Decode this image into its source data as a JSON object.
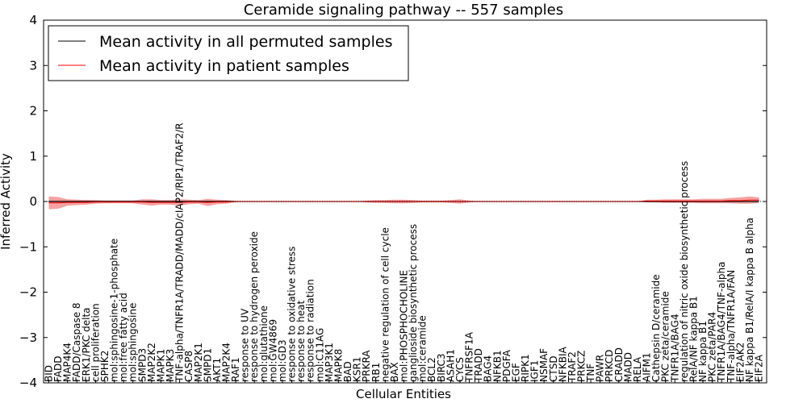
{
  "chart_data": {
    "type": "line",
    "title": "Ceramide signaling pathway -- 557 samples",
    "xlabel": "Cellular Entities",
    "ylabel": "Inferred Activity",
    "ylim": [
      -4,
      4
    ],
    "yticks": [
      -4,
      -3,
      -2,
      -1,
      0,
      1,
      2,
      3,
      4
    ],
    "grid": false,
    "legend": {
      "placement": "top-left",
      "entries": [
        {
          "label": "Mean activity in all permuted samples",
          "color": "#000000"
        },
        {
          "label": "Mean activity in patient samples",
          "color": "#ff0000"
        }
      ]
    },
    "categories": [
      "BID",
      "FADD",
      "MAP4K4",
      "FADD/Caspase 8",
      "ERK1/PKC delta",
      "cell proliferation",
      "SPHK2",
      "mol:sphingosine-1-phosphate",
      "mol:free fatty acid",
      "mol:sphingosine",
      "SMPD3",
      "MAP2K2",
      "MAPK1",
      "MAPK3",
      "TNF-alpha/TNFR1A/TRADD/MADD/cIAP2/RIP1/TRAF2/R",
      "CASP8",
      "MAP2K1",
      "SMPD1",
      "AKT1",
      "MAP2K4",
      "RAF1",
      "response to UV",
      "response to hydrogen peroxide",
      "mol:glutathione",
      "mol:GW4869",
      "mol:GD3",
      "response to oxidative stress",
      "response to heat",
      "response to radiation",
      "mol:C11AG",
      "MAP3K1",
      "MAPK8",
      "BAD",
      "KSR1",
      "PRKRA",
      "RB1",
      "negative regulation of cell cycle",
      "BAX",
      "mol:PHOSPHOCHOLINE",
      "ganglioside biosynthetic process",
      "mol:ceramide",
      "BCL2",
      "BIRC3",
      "ASAH1",
      "CYCS",
      "TNFRSF1A",
      "TRADD",
      "BAG4",
      "NFKB1",
      "PDGFA",
      "EGF",
      "RIPK1",
      "IGF1",
      "NSMAF",
      "CTSD",
      "NFKBIA",
      "TRAF2",
      "PRKCZ",
      "TNF",
      "PAWR",
      "PRKCD",
      "CRADD",
      "MADD",
      "RELA",
      "AIFM1",
      "Cathepsin D/ceramide",
      "PKC zeta/ceramide",
      "TNFR1A/BAG4",
      "regulation of nitric oxide biosynthetic process",
      "RelA/NF kappa B1",
      "NF kappa B1",
      "PKC zeta/PAR4",
      "TNFR1A/BAG4/TNF-alpha",
      "TNF-alpha/TNFR1A/FAN",
      "EIF2AK2",
      "NF kappa B1/RelA/I kappa B alpha",
      "EIF2A"
    ],
    "series": [
      {
        "name": "Mean activity in all permuted samples",
        "color": "#000000",
        "values": [
          0,
          0,
          0,
          0,
          0,
          0,
          0,
          0,
          0,
          0,
          0,
          0,
          0,
          0,
          0,
          0,
          0,
          0,
          0,
          0,
          0,
          0,
          0,
          0,
          0,
          0,
          0,
          0,
          0,
          0,
          0,
          0,
          0,
          0,
          0,
          0,
          0,
          0,
          0,
          0,
          0,
          0,
          0,
          0,
          0,
          0,
          0,
          0,
          0,
          0,
          0,
          0,
          0,
          0,
          0,
          0,
          0,
          0,
          0,
          0,
          0,
          0,
          0,
          0,
          0,
          0,
          0,
          0,
          0,
          0,
          0,
          0,
          0,
          0,
          0,
          0,
          0
        ],
        "band": [
          0.04,
          0.04,
          0.04,
          0.04,
          0.04,
          0.03,
          0.03,
          0.03,
          0.03,
          0.03,
          0.03,
          0.03,
          0.03,
          0.03,
          0.03,
          0.03,
          0.03,
          0.03,
          0.03,
          0.03,
          0.02,
          0,
          0,
          0,
          0,
          0,
          0,
          0,
          0,
          0,
          0,
          0,
          0,
          0,
          0,
          0,
          0,
          0,
          0,
          0,
          0,
          0,
          0,
          0,
          0,
          0,
          0,
          0,
          0,
          0,
          0,
          0,
          0,
          0,
          0,
          0,
          0,
          0,
          0,
          0,
          0,
          0,
          0,
          0,
          0,
          0,
          0,
          0,
          0,
          0,
          0,
          0,
          0,
          0,
          0,
          0,
          0
        ]
      },
      {
        "name": "Mean activity in patient samples",
        "color": "#ff0000",
        "values": [
          -0.03,
          -0.03,
          -0.02,
          -0.02,
          -0.02,
          -0.01,
          -0.01,
          -0.01,
          -0.01,
          -0.01,
          -0.01,
          -0.02,
          -0.02,
          -0.02,
          -0.02,
          -0.01,
          -0.01,
          -0.02,
          -0.01,
          -0.01,
          0,
          0,
          0,
          0,
          0,
          0,
          0,
          0,
          0,
          0,
          0,
          0,
          0,
          0,
          0,
          0,
          0,
          0,
          0,
          0,
          0,
          0,
          0,
          0,
          0,
          0,
          0,
          0,
          0,
          0,
          0,
          0,
          0,
          0,
          0,
          0,
          0,
          0,
          0,
          0,
          0,
          0,
          0,
          0,
          0.01,
          0.01,
          0.01,
          0.01,
          0.01,
          0.01,
          0.01,
          0.01,
          0.01,
          0.02,
          0.02,
          0.03,
          0.03
        ],
        "band": [
          0.14,
          0.13,
          0.07,
          0.06,
          0.05,
          0.04,
          0.03,
          0.03,
          0.03,
          0.03,
          0.06,
          0.07,
          0.05,
          0.05,
          0.07,
          0.05,
          0.04,
          0.08,
          0.05,
          0.04,
          0.01,
          0,
          0,
          0,
          0,
          0,
          0,
          0,
          0,
          0,
          0,
          0,
          0,
          0,
          0.02,
          0.03,
          0.03,
          0.04,
          0.04,
          0.03,
          0.02,
          0.02,
          0.02,
          0.03,
          0.05,
          0.02,
          0,
          0,
          0,
          0,
          0,
          0,
          0,
          0,
          0,
          0,
          0,
          0,
          0,
          0,
          0,
          0,
          0,
          0,
          0.03,
          0.03,
          0.04,
          0.04,
          0.04,
          0.04,
          0.05,
          0.05,
          0.05,
          0.06,
          0.07,
          0.08,
          0.06
        ]
      }
    ]
  }
}
